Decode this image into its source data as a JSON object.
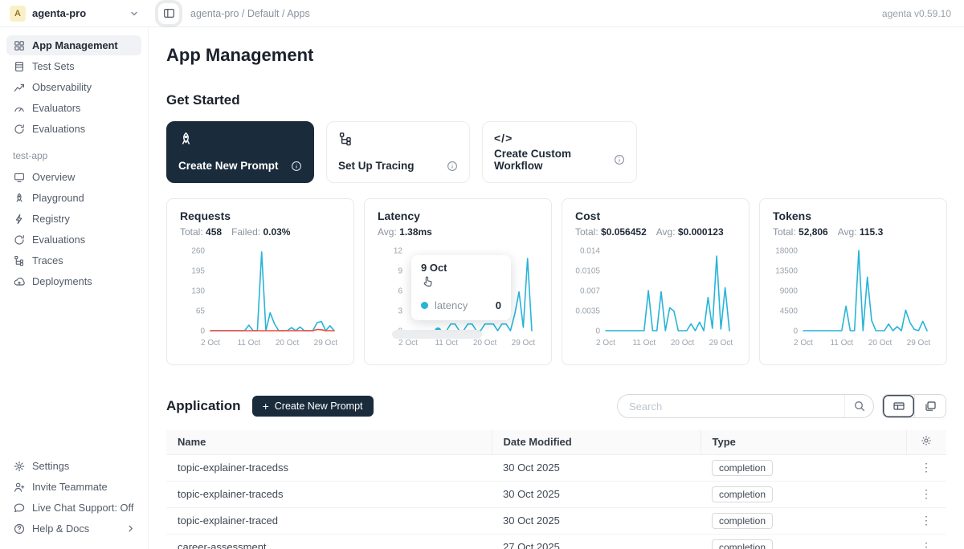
{
  "topbar": {
    "workspace_avatar": "A",
    "workspace_label": "agenta-pro",
    "breadcrumb": "agenta-pro / Default / Apps",
    "version": "agenta v0.59.10"
  },
  "sidebar": {
    "main_items": [
      {
        "label": "App Management",
        "icon": "grid",
        "selected": true
      },
      {
        "label": "Test Sets",
        "icon": "testsets"
      },
      {
        "label": "Observability",
        "icon": "trend"
      },
      {
        "label": "Evaluators",
        "icon": "gauge"
      },
      {
        "label": "Evaluations",
        "icon": "loop"
      }
    ],
    "section_label": "test-app",
    "app_items": [
      {
        "label": "Overview",
        "icon": "monitor"
      },
      {
        "label": "Playground",
        "icon": "rocket"
      },
      {
        "label": "Registry",
        "icon": "bolt"
      },
      {
        "label": "Evaluations",
        "icon": "loop"
      },
      {
        "label": "Traces",
        "icon": "tree"
      },
      {
        "label": "Deployments",
        "icon": "cloud"
      }
    ],
    "footer_items": [
      {
        "label": "Settings",
        "icon": "gear"
      },
      {
        "label": "Invite Teammate",
        "icon": "person"
      },
      {
        "label": "Live Chat Support: Off",
        "icon": "chat"
      },
      {
        "label": "Help & Docs",
        "icon": "help",
        "chevron": true
      }
    ]
  },
  "main": {
    "page_title": "App Management",
    "get_started": {
      "heading": "Get Started",
      "cards": [
        {
          "label": "Create New Prompt",
          "icon": "rocket",
          "dark": true
        },
        {
          "label": "Set Up Tracing",
          "icon": "tree"
        },
        {
          "label": "Create Custom Workflow",
          "icon": "code"
        }
      ]
    },
    "application": {
      "heading": "Application",
      "create_button_label": "Create New Prompt",
      "search_placeholder": "Search",
      "table": {
        "headers": [
          "Name",
          "Date Modified",
          "Type"
        ],
        "rows": [
          {
            "name": "topic-explainer-tracedss",
            "date": "30 Oct 2025",
            "type": "completion"
          },
          {
            "name": "topic-explainer-traceds",
            "date": "30 Oct 2025",
            "type": "completion"
          },
          {
            "name": "topic-explainer-traced",
            "date": "30 Oct 2025",
            "type": "completion"
          },
          {
            "name": "career-assessment",
            "date": "27 Oct 2025",
            "type": "completion"
          }
        ]
      }
    }
  },
  "colors": {
    "accent_cyan": "#27b4d8",
    "failed_red": "#f5463d",
    "dark_navy": "#1a2b3c"
  },
  "chart_data": [
    {
      "type": "line",
      "title": "Requests",
      "stats": [
        {
          "label": "Total:",
          "value": "458"
        },
        {
          "label": "Failed:",
          "value": "0.03%"
        }
      ],
      "x_start_day": 2,
      "xticks": [
        {
          "label": "2 Oct",
          "day": 2
        },
        {
          "label": "11 Oct",
          "day": 11
        },
        {
          "label": "20 Oct",
          "day": 20
        },
        {
          "label": "29 Oct",
          "day": 29
        }
      ],
      "ylim": [
        0,
        260
      ],
      "yticks": [
        260,
        195,
        130,
        65,
        0
      ],
      "series": [
        {
          "name": "requests",
          "color": "#27b4d8",
          "values": [
            0,
            0,
            0,
            0,
            0,
            0,
            0,
            0,
            0,
            18,
            0,
            0,
            255,
            0,
            58,
            22,
            0,
            0,
            0,
            10,
            0,
            12,
            0,
            0,
            0,
            26,
            30,
            0,
            16,
            0
          ]
        },
        {
          "name": "failed",
          "color": "#f5463d",
          "values": [
            0,
            0,
            0,
            0,
            0,
            0,
            0,
            0,
            0,
            0,
            0,
            0,
            0,
            0,
            0,
            0,
            0,
            0,
            0,
            0,
            0,
            0,
            0,
            0,
            0,
            4,
            3,
            0,
            0,
            0
          ]
        }
      ]
    },
    {
      "type": "line",
      "title": "Latency",
      "stats": [
        {
          "label": "Avg:",
          "value": "1.38ms"
        }
      ],
      "x_start_day": 2,
      "xticks": [
        {
          "label": "2 Oct",
          "day": 2
        },
        {
          "label": "11 Oct",
          "day": 11
        },
        {
          "label": "20 Oct",
          "day": 20
        },
        {
          "label": "29 Oct",
          "day": 29
        }
      ],
      "ylim": [
        0,
        12
      ],
      "yticks": [
        12,
        9,
        6,
        3,
        0
      ],
      "series": [
        {
          "name": "latency",
          "color": "#27b4d8",
          "values": [
            0,
            0,
            0,
            0,
            0,
            0,
            0,
            0,
            0,
            0,
            1,
            1,
            0,
            0,
            1,
            1,
            0,
            0,
            1,
            1,
            1,
            0,
            1,
            1,
            0,
            2.5,
            5.8,
            0.5,
            10.8,
            0
          ]
        }
      ],
      "marker": {
        "day": 9,
        "value": 0
      },
      "tooltip": {
        "date": "9 Oct",
        "label": "latency",
        "value": "0"
      }
    },
    {
      "type": "line",
      "title": "Cost",
      "stats": [
        {
          "label": "Total:",
          "value": "$0.056452"
        },
        {
          "label": "Avg:",
          "value": "$0.000123"
        }
      ],
      "x_start_day": 2,
      "xticks": [
        {
          "label": "2 Oct",
          "day": 2
        },
        {
          "label": "11 Oct",
          "day": 11
        },
        {
          "label": "20 Oct",
          "day": 20
        },
        {
          "label": "29 Oct",
          "day": 29
        }
      ],
      "ylim": [
        0,
        0.014
      ],
      "yticks": [
        0.014,
        0.0105,
        0.007,
        0.0035,
        0
      ],
      "series": [
        {
          "name": "cost",
          "color": "#27b4d8",
          "values": [
            0,
            0,
            0,
            0,
            0,
            0,
            0,
            0,
            0,
            0,
            0.007,
            0,
            0,
            0.0068,
            0,
            0.004,
            0.0034,
            0,
            0,
            0,
            0.0012,
            0,
            0.0015,
            0,
            0.0058,
            0.0004,
            0.013,
            0.0003,
            0.0075,
            0
          ]
        }
      ]
    },
    {
      "type": "line",
      "title": "Tokens",
      "stats": [
        {
          "label": "Total:",
          "value": "52,806"
        },
        {
          "label": "Avg:",
          "value": "115.3"
        }
      ],
      "x_start_day": 2,
      "xticks": [
        {
          "label": "2 Oct",
          "day": 2
        },
        {
          "label": "11 Oct",
          "day": 11
        },
        {
          "label": "20 Oct",
          "day": 20
        },
        {
          "label": "29 Oct",
          "day": 29
        }
      ],
      "ylim": [
        0,
        18000
      ],
      "yticks": [
        18000,
        13500,
        9000,
        4500,
        0
      ],
      "series": [
        {
          "name": "tokens",
          "color": "#27b4d8",
          "values": [
            0,
            0,
            0,
            0,
            0,
            0,
            0,
            0,
            0,
            0,
            5500,
            0,
            0,
            18000,
            0,
            12000,
            2300,
            0,
            0,
            0,
            1500,
            0,
            900,
            0,
            4600,
            1800,
            300,
            0,
            2100,
            0
          ]
        }
      ]
    }
  ]
}
